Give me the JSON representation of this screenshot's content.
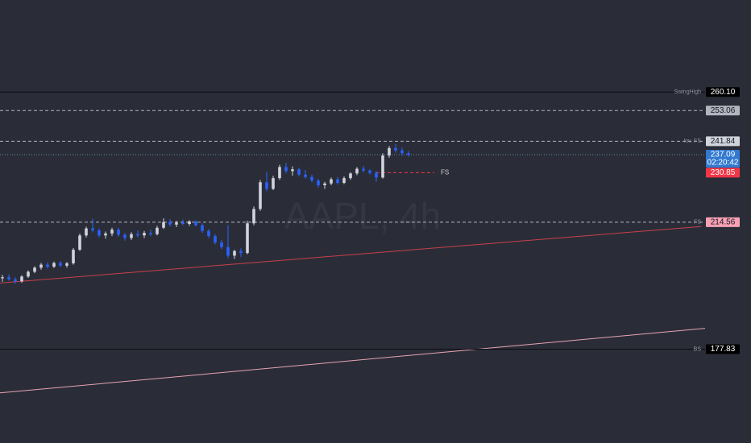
{
  "chart_data": {
    "type": "candlestick",
    "watermark": "AAPL, 4h",
    "background": "#2a2d38",
    "log_scale": true,
    "ylim": [
      154.8,
      298.0
    ],
    "xlim": [
      -0.375,
      109
    ],
    "up_color": "#d1d4dc",
    "down_color": "#2962ff",
    "candles": {
      "open": [
        197.5,
        197.8,
        197.2,
        196.6,
        198.0,
        199.4,
        200.6,
        201.5,
        200.9,
        202.0,
        201.2,
        201.9,
        206.0,
        210.4,
        212.6,
        212.0,
        210.4,
        211.0,
        212.2,
        210.6,
        209.6,
        210.8,
        210.4,
        211.2,
        210.8,
        212.8,
        214.6,
        213.8,
        214.4,
        214.0,
        214.8,
        213.6,
        211.8,
        210.2,
        208.2,
        206.8,
        204.2,
        205.6,
        205.0,
        214.2,
        218.8,
        227.6,
        225.4,
        229.0,
        232.8,
        231.4,
        232.0,
        230.2,
        229.4,
        228.2,
        226.6,
        227.2,
        228.6,
        227.4,
        229.0,
        230.6,
        232.2,
        231.6,
        230.8,
        229.2,
        236.8,
        239.4,
        238.6,
        237.6
      ],
      "high": [
        198.5,
        198.6,
        197.8,
        198.4,
        199.8,
        201.0,
        202.0,
        202.2,
        202.4,
        202.6,
        202.3,
        206.5,
        211.0,
        213.2,
        215.6,
        212.6,
        211.6,
        212.8,
        212.8,
        211.2,
        211.4,
        212.0,
        211.8,
        212.2,
        213.4,
        215.8,
        215.6,
        215.0,
        215.4,
        215.2,
        215.2,
        214.2,
        212.4,
        210.8,
        209.0,
        213.6,
        206.0,
        206.4,
        215.0,
        219.6,
        228.4,
        231.2,
        229.8,
        233.6,
        234.2,
        233.0,
        232.6,
        231.8,
        230.2,
        228.8,
        227.8,
        229.2,
        229.4,
        229.6,
        231.0,
        232.8,
        233.2,
        232.0,
        231.4,
        237.6,
        240.2,
        240.8,
        239.6,
        238.4
      ],
      "low": [
        196.5,
        196.8,
        195.9,
        196.2,
        197.6,
        199.0,
        200.0,
        200.4,
        200.5,
        200.8,
        200.6,
        201.5,
        205.6,
        209.8,
        211.4,
        209.8,
        209.4,
        210.2,
        210.0,
        208.8,
        209.0,
        209.8,
        209.6,
        210.2,
        210.4,
        212.4,
        213.2,
        213.0,
        213.6,
        213.4,
        213.2,
        211.2,
        209.6,
        207.6,
        206.2,
        203.4,
        203.2,
        203.8,
        204.6,
        213.6,
        218.2,
        224.6,
        225.0,
        228.4,
        230.6,
        229.8,
        229.6,
        228.8,
        227.6,
        225.8,
        225.4,
        226.6,
        226.8,
        227.0,
        228.4,
        230.0,
        231.0,
        230.2,
        227.8,
        228.8,
        236.0,
        237.8,
        236.8,
        236.4
      ],
      "close": [
        197.8,
        197.2,
        196.6,
        198.0,
        199.4,
        200.6,
        201.5,
        200.9,
        202.0,
        201.2,
        201.9,
        206.0,
        210.4,
        212.6,
        212.0,
        210.4,
        211.0,
        212.2,
        210.6,
        209.6,
        210.8,
        210.4,
        211.2,
        210.8,
        212.8,
        214.6,
        213.8,
        214.4,
        214.0,
        214.8,
        213.6,
        211.8,
        210.2,
        208.2,
        206.8,
        204.2,
        205.6,
        205.0,
        214.2,
        218.8,
        227.6,
        225.4,
        229.0,
        232.8,
        231.4,
        232.0,
        230.2,
        229.4,
        228.2,
        226.6,
        227.2,
        228.6,
        227.4,
        229.0,
        230.6,
        232.2,
        231.6,
        230.8,
        229.2,
        236.8,
        239.4,
        238.6,
        237.6,
        237.09
      ]
    },
    "levels": [
      {
        "name": "SwingHigh",
        "value": 260.1,
        "value_label": "260.10",
        "style": "solid",
        "color": "#0b0c10",
        "box": "#000000",
        "text": "#ffffff"
      },
      {
        "value": 253.06,
        "value_label": "253.06",
        "style": "dashed",
        "color": "#b2b5be",
        "box": "#b2b5be",
        "text": "#131722"
      },
      {
        "name": "Inv. FS",
        "value": 241.84,
        "value_label": "241.84",
        "style": "dashed",
        "color": "#b2b5be",
        "box": "#d1d4dc",
        "text": "#131722"
      },
      {
        "value": 237.09,
        "value_label": "237.09",
        "countdown": "02:20:42",
        "style": "dotted",
        "color": "#5b8aa6",
        "box": "#3179d0",
        "text": "#ffffff"
      },
      {
        "name": "FS",
        "value": 230.85,
        "value_label": "230.85",
        "style": "dashed",
        "color": "#f23645",
        "box": "#f23645",
        "text": "#ffffff",
        "from": 58,
        "to": 67
      },
      {
        "name": "FS",
        "value": 214.56,
        "value_label": "214.56",
        "style": "dashed",
        "color": "#b2b5be",
        "box": "#f7a1b4",
        "text": "#131722"
      },
      {
        "name": "BS",
        "value": 177.83,
        "value_label": "177.83",
        "style": "solid",
        "color": "#0b0c10",
        "box": "#000000",
        "text": "#ffffff"
      }
    ],
    "trendlines": [
      {
        "color": "#c9404a",
        "x": [
          -0.375,
          108.4
        ],
        "y": [
          196.1,
          213.2
        ]
      },
      {
        "color": "#e7a3b2",
        "x": [
          -0.375,
          109
        ],
        "y": [
          166.7,
          183.4
        ]
      }
    ]
  }
}
